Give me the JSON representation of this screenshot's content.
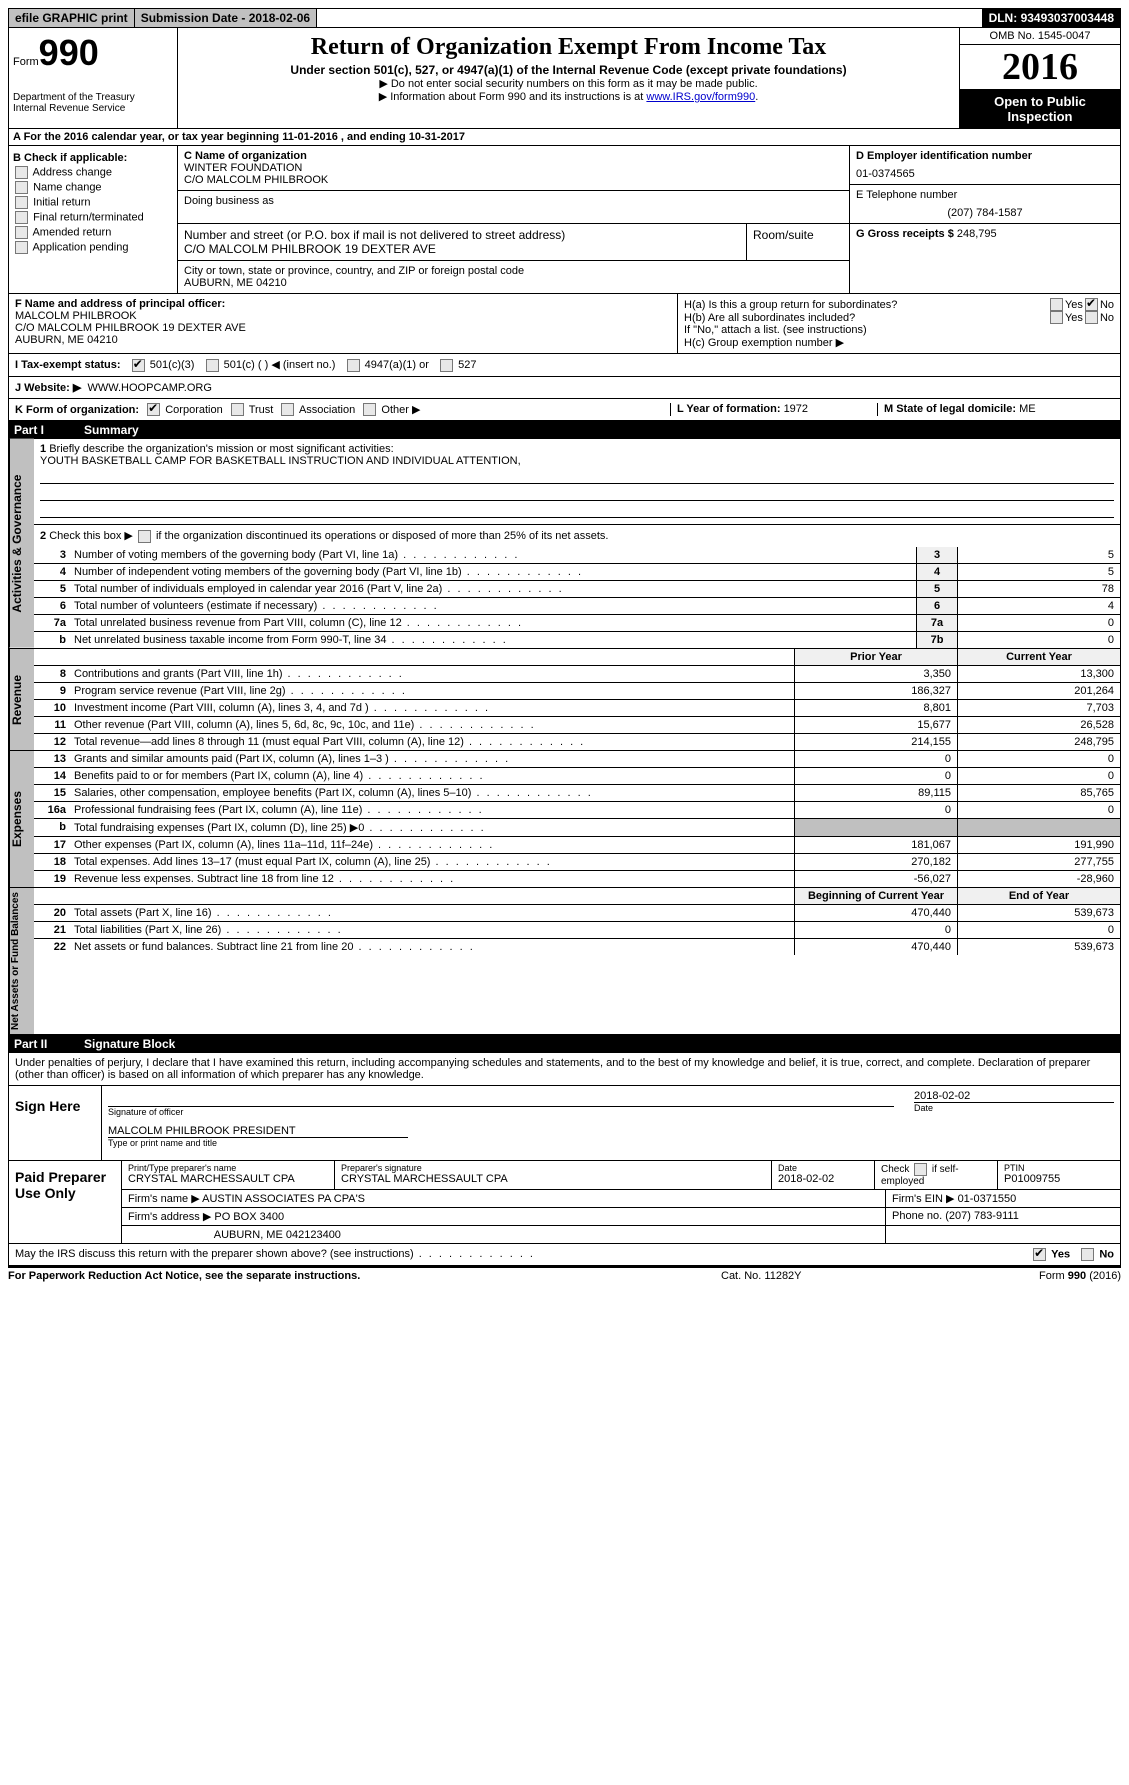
{
  "topbar": {
    "efile": "efile GRAPHIC print",
    "subdate_label": "Submission Date - ",
    "subdate": "2018-02-06",
    "dln_label": "DLN: ",
    "dln": "93493037003448"
  },
  "header": {
    "form_label": "Form",
    "form_no": "990",
    "dept1": "Department of the Treasury",
    "dept2": "Internal Revenue Service",
    "title": "Return of Organization Exempt From Income Tax",
    "sub": "Under section 501(c), 527, or 4947(a)(1) of the Internal Revenue Code (except private foundations)",
    "note1": "▶ Do not enter social security numbers on this form as it may be made public.",
    "note2_pre": "▶ Information about Form 990 and its instructions is at ",
    "note2_link": "www.IRS.gov/form990",
    "omb": "OMB No. 1545-0047",
    "year": "2016",
    "open": "Open to Public Inspection"
  },
  "section_a": "A  For the 2016 calendar year, or tax year beginning 11-01-2016   , and ending 10-31-2017",
  "b": {
    "label": "B Check if applicable:",
    "opts": [
      "Address change",
      "Name change",
      "Initial return",
      "Final return/terminated",
      "Amended return",
      "Application pending"
    ]
  },
  "c": {
    "name_label": "C Name of organization",
    "name1": "WINTER FOUNDATION",
    "name2": "C/O MALCOLM PHILBROOK",
    "dba_label": "Doing business as",
    "addr_label": "Number and street (or P.O. box if mail is not delivered to street address)",
    "addr": "C/O MALCOLM PHILBROOK 19 DEXTER AVE",
    "room_label": "Room/suite",
    "city_label": "City or town, state or province, country, and ZIP or foreign postal code",
    "city": "AUBURN, ME  04210"
  },
  "d": {
    "label": "D Employer identification number",
    "ein": "01-0374565",
    "tele_label": "E Telephone number",
    "tele": "(207) 784-1587",
    "gross_label": "G Gross receipts $ ",
    "gross": "248,795"
  },
  "f": {
    "label": "F Name and address of principal officer:",
    "name": "MALCOLM PHILBROOK",
    "addr1": "C/O MALCOLM PHILBROOK 19 DEXTER AVE",
    "addr2": "AUBURN, ME  04210"
  },
  "h": {
    "a": "H(a)  Is this a group return for subordinates?",
    "b": "H(b)  Are all subordinates included?",
    "note": "If \"No,\" attach a list. (see instructions)",
    "c": "H(c)  Group exemption number ▶",
    "yes": "Yes",
    "no": "No"
  },
  "i": {
    "label": "I  Tax-exempt status:",
    "o1": "501(c)(3)",
    "o2": "501(c) (   ) ◀ (insert no.)",
    "o3": "4947(a)(1) or",
    "o4": "527"
  },
  "j": {
    "label": "J  Website: ▶",
    "val": "WWW.HOOPCAMP.ORG"
  },
  "k": {
    "label": "K Form of organization:",
    "o1": "Corporation",
    "o2": "Trust",
    "o3": "Association",
    "o4": "Other ▶",
    "l_label": "L Year of formation: ",
    "l_val": "1972",
    "m_label": "M State of legal domicile: ",
    "m_val": "ME"
  },
  "part1": {
    "pn": "Part I",
    "title": "Summary"
  },
  "governance": {
    "tab": "Activities & Governance",
    "l1": {
      "num": "1",
      "desc": "Briefly describe the organization's mission or most significant activities:",
      "val": "YOUTH BASKETBALL CAMP FOR BASKETBALL INSTRUCTION AND INDIVIDUAL ATTENTION,"
    },
    "l2": "Check this box ▶        if the organization discontinued its operations or disposed of more than 25% of its net assets.",
    "lines": [
      {
        "num": "3",
        "desc": "Number of voting members of the governing body (Part VI, line 1a)",
        "cell": "3",
        "val": "5"
      },
      {
        "num": "4",
        "desc": "Number of independent voting members of the governing body (Part VI, line 1b)",
        "cell": "4",
        "val": "5"
      },
      {
        "num": "5",
        "desc": "Total number of individuals employed in calendar year 2016 (Part V, line 2a)",
        "cell": "5",
        "val": "78"
      },
      {
        "num": "6",
        "desc": "Total number of volunteers (estimate if necessary)",
        "cell": "6",
        "val": "4"
      },
      {
        "num": "7a",
        "desc": "Total unrelated business revenue from Part VIII, column (C), line 12",
        "cell": "7a",
        "val": "0"
      },
      {
        "num": "b",
        "desc": "Net unrelated business taxable income from Form 990-T, line 34",
        "cell": "7b",
        "val": "0"
      }
    ]
  },
  "revenue": {
    "tab": "Revenue",
    "header": {
      "prior": "Prior Year",
      "current": "Current Year"
    },
    "lines": [
      {
        "num": "8",
        "desc": "Contributions and grants (Part VIII, line 1h)",
        "prior": "3,350",
        "current": "13,300"
      },
      {
        "num": "9",
        "desc": "Program service revenue (Part VIII, line 2g)",
        "prior": "186,327",
        "current": "201,264"
      },
      {
        "num": "10",
        "desc": "Investment income (Part VIII, column (A), lines 3, 4, and 7d )",
        "prior": "8,801",
        "current": "7,703"
      },
      {
        "num": "11",
        "desc": "Other revenue (Part VIII, column (A), lines 5, 6d, 8c, 9c, 10c, and 11e)",
        "prior": "15,677",
        "current": "26,528"
      },
      {
        "num": "12",
        "desc": "Total revenue—add lines 8 through 11 (must equal Part VIII, column (A), line 12)",
        "prior": "214,155",
        "current": "248,795"
      }
    ]
  },
  "expenses": {
    "tab": "Expenses",
    "lines": [
      {
        "num": "13",
        "desc": "Grants and similar amounts paid (Part IX, column (A), lines 1–3 )",
        "prior": "0",
        "current": "0"
      },
      {
        "num": "14",
        "desc": "Benefits paid to or for members (Part IX, column (A), line 4)",
        "prior": "0",
        "current": "0"
      },
      {
        "num": "15",
        "desc": "Salaries, other compensation, employee benefits (Part IX, column (A), lines 5–10)",
        "prior": "89,115",
        "current": "85,765"
      },
      {
        "num": "16a",
        "desc": "Professional fundraising fees (Part IX, column (A), line 11e)",
        "prior": "0",
        "current": "0"
      },
      {
        "num": "b",
        "desc": "Total fundraising expenses (Part IX, column (D), line 25) ▶0",
        "prior": "",
        "current": "",
        "shaded": true
      },
      {
        "num": "17",
        "desc": "Other expenses (Part IX, column (A), lines 11a–11d, 11f–24e)",
        "prior": "181,067",
        "current": "191,990"
      },
      {
        "num": "18",
        "desc": "Total expenses. Add lines 13–17 (must equal Part IX, column (A), line 25)",
        "prior": "270,182",
        "current": "277,755"
      },
      {
        "num": "19",
        "desc": "Revenue less expenses. Subtract line 18 from line 12",
        "prior": "-56,027",
        "current": "-28,960"
      }
    ]
  },
  "netassets": {
    "tab": "Net Assets or Fund Balances",
    "header": {
      "prior": "Beginning of Current Year",
      "current": "End of Year"
    },
    "lines": [
      {
        "num": "20",
        "desc": "Total assets (Part X, line 16)",
        "prior": "470,440",
        "current": "539,673"
      },
      {
        "num": "21",
        "desc": "Total liabilities (Part X, line 26)",
        "prior": "0",
        "current": "0"
      },
      {
        "num": "22",
        "desc": "Net assets or fund balances. Subtract line 21 from line 20",
        "prior": "470,440",
        "current": "539,673"
      }
    ]
  },
  "part2": {
    "pn": "Part II",
    "title": "Signature Block"
  },
  "sig": {
    "text": "Under penalties of perjury, I declare that I have examined this return, including accompanying schedules and statements, and to the best of my knowledge and belief, it is true, correct, and complete. Declaration of preparer (other than officer) is based on all information of which preparer has any knowledge.",
    "sign_label": "Sign Here",
    "sig_of_officer": "Signature of officer",
    "date_label": "Date",
    "date": "2018-02-02",
    "name": "MALCOLM PHILBROOK PRESIDENT",
    "name_label": "Type or print name and title"
  },
  "prep": {
    "label": "Paid Preparer Use Only",
    "print_label": "Print/Type preparer's name",
    "print_name": "CRYSTAL MARCHESSAULT CPA",
    "sig_label": "Preparer's signature",
    "sig_name": "CRYSTAL MARCHESSAULT CPA",
    "date_label": "Date",
    "date": "2018-02-02",
    "check_label": "Check         if self-employed",
    "ptin_label": "PTIN",
    "ptin": "P01009755",
    "firm_name_label": "Firm's name      ▶ ",
    "firm_name": "AUSTIN ASSOCIATES PA CPA'S",
    "firm_ein_label": "Firm's EIN ▶ ",
    "firm_ein": "01-0371550",
    "firm_addr_label": "Firm's address ▶ ",
    "firm_addr1": "PO BOX 3400",
    "firm_addr2": "AUBURN, ME  042123400",
    "phone_label": "Phone no. ",
    "phone": "(207) 783-9111"
  },
  "discuss": {
    "text": "May the IRS discuss this return with the preparer shown above? (see instructions)",
    "yes": "Yes",
    "no": "No"
  },
  "footer": {
    "left": "For Paperwork Reduction Act Notice, see the separate instructions.",
    "mid": "Cat. No. 11282Y",
    "right_pre": "Form ",
    "right_form": "990",
    "right_post": " (2016)"
  }
}
